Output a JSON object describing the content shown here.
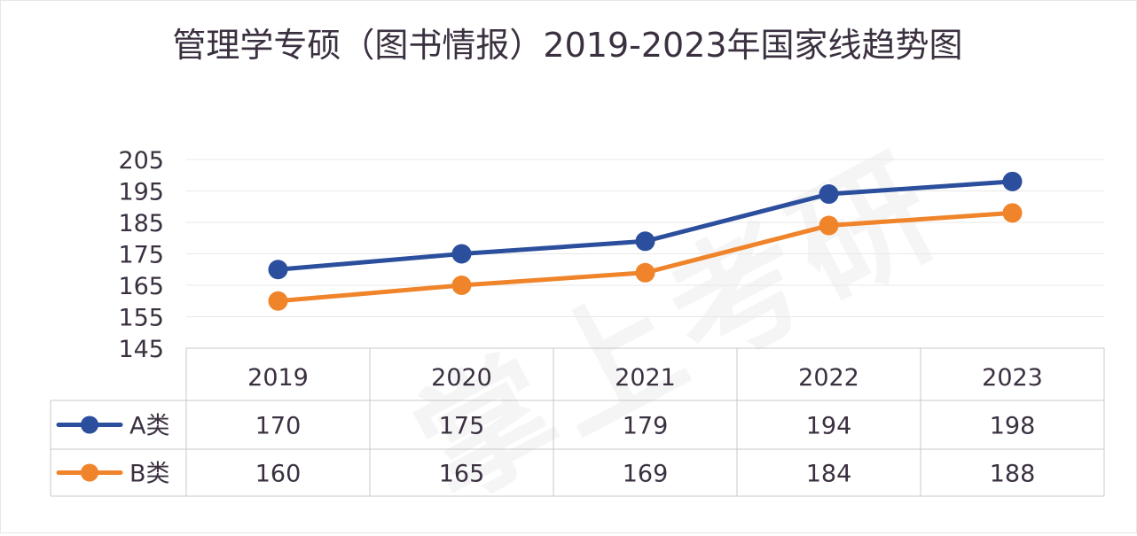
{
  "chart_data": {
    "type": "line",
    "title": "管理学专硕（图书情报）2019-2023年国家线趋势图",
    "categories": [
      "2019",
      "2020",
      "2021",
      "2022",
      "2023"
    ],
    "series": [
      {
        "name": "A类",
        "values": [
          170,
          175,
          179,
          194,
          198
        ],
        "color": "#2b4f9c"
      },
      {
        "name": "B类",
        "values": [
          160,
          165,
          169,
          184,
          188
        ],
        "color": "#f0842a"
      }
    ],
    "yticks": [
      145,
      155,
      165,
      175,
      185,
      195,
      205
    ],
    "ylim": [
      145,
      205
    ],
    "grid": true,
    "legend": "data-table"
  },
  "watermark": "掌上考研"
}
